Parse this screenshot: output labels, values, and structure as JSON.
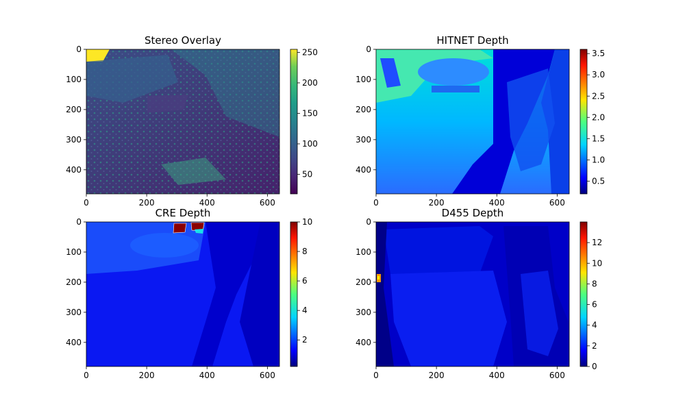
{
  "figure": {
    "background": "#ffffff"
  },
  "chart_data": [
    {
      "type": "heatmap",
      "title": "Stereo Overlay",
      "image_size": [
        640,
        480
      ],
      "xlim": [
        0,
        640
      ],
      "ylim": [
        480,
        0
      ],
      "x_ticks": [
        0,
        200,
        400,
        600
      ],
      "y_ticks": [
        0,
        100,
        200,
        300,
        400
      ],
      "colormap": "viridis",
      "colorbar": {
        "min": 18,
        "max": 255,
        "ticks": [
          50,
          100,
          150,
          200,
          250
        ]
      }
    },
    {
      "type": "heatmap",
      "title": "HITNET Depth",
      "image_size": [
        640,
        480
      ],
      "xlim": [
        0,
        640
      ],
      "ylim": [
        480,
        0
      ],
      "x_ticks": [
        0,
        200,
        400,
        600
      ],
      "y_ticks": [
        0,
        100,
        200,
        300,
        400
      ],
      "colormap": "jet",
      "colorbar": {
        "min": 0.2,
        "max": 3.6,
        "ticks": [
          0.5,
          1.0,
          1.5,
          2.0,
          2.5,
          3.0,
          3.5
        ],
        "format": "1"
      }
    },
    {
      "type": "heatmap",
      "title": "CRE Depth",
      "image_size": [
        640,
        480
      ],
      "xlim": [
        0,
        640
      ],
      "ylim": [
        480,
        0
      ],
      "x_ticks": [
        0,
        200,
        400,
        600
      ],
      "y_ticks": [
        0,
        100,
        200,
        300,
        400
      ],
      "colormap": "jet",
      "colorbar": {
        "min": 0.2,
        "max": 10,
        "ticks": [
          2,
          4,
          6,
          8,
          10
        ]
      }
    },
    {
      "type": "heatmap",
      "title": "D455 Depth",
      "image_size": [
        640,
        480
      ],
      "xlim": [
        0,
        640
      ],
      "ylim": [
        480,
        0
      ],
      "x_ticks": [
        0,
        200,
        400,
        600
      ],
      "y_ticks": [
        0,
        100,
        200,
        300,
        400
      ],
      "colormap": "jet",
      "colorbar": {
        "min": 0,
        "max": 14,
        "ticks": [
          0,
          2,
          4,
          6,
          8,
          10,
          12
        ]
      }
    }
  ]
}
